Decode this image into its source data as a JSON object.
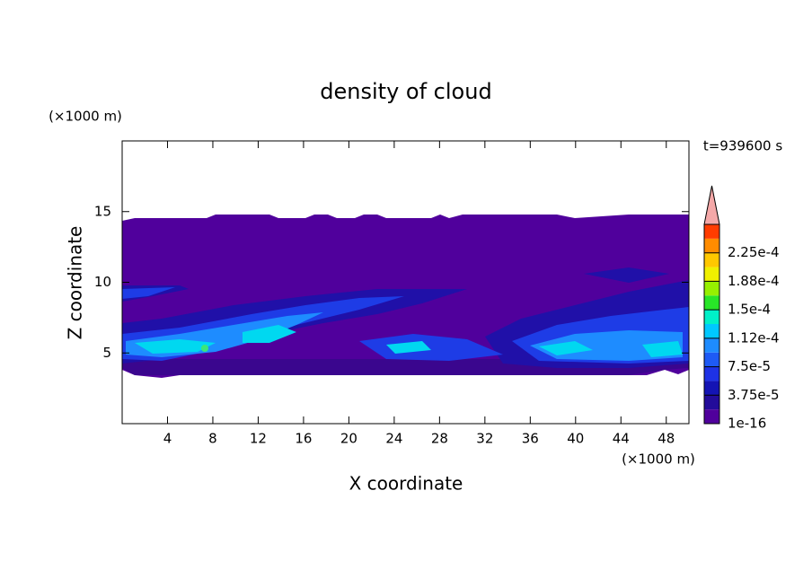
{
  "chart_data": {
    "type": "contour",
    "title": "density of cloud",
    "x_label": "X coordinate",
    "y_label": "Z coordinate",
    "x_unit": "(×1000 m)",
    "y_unit": "(×1000 m)",
    "annotation": "t=939600 s",
    "xlim": [
      0,
      50
    ],
    "ylim": [
      0,
      20
    ],
    "xticks": [
      4,
      8,
      12,
      16,
      20,
      24,
      28,
      32,
      36,
      40,
      44,
      48
    ],
    "yticks": [
      5,
      10,
      15
    ],
    "colorbar": {
      "clim": [
        1e-16,
        0.0002625
      ],
      "colors": [
        "#50009c",
        "#230c9a",
        "#1414b4",
        "#1e32e6",
        "#1e5af5",
        "#1e8cff",
        "#00c8ff",
        "#00f0c8",
        "#28e628",
        "#96f000",
        "#f0f000",
        "#ffc800",
        "#ff8c00",
        "#ff3c00"
      ],
      "extend_color": "#f4a8a8",
      "ticks": [
        {
          "value": 1e-16,
          "label": "1e-16"
        },
        {
          "value": 3.75e-05,
          "label": "3.75e-5"
        },
        {
          "value": 7.5e-05,
          "label": "7.5e-5"
        },
        {
          "value": 0.0001125,
          "label": "1.12e-4"
        },
        {
          "value": 0.00015,
          "label": "1.5e-4"
        },
        {
          "value": 0.0001875,
          "label": "1.88e-4"
        },
        {
          "value": 0.000225,
          "label": "2.25e-4"
        }
      ]
    }
  }
}
